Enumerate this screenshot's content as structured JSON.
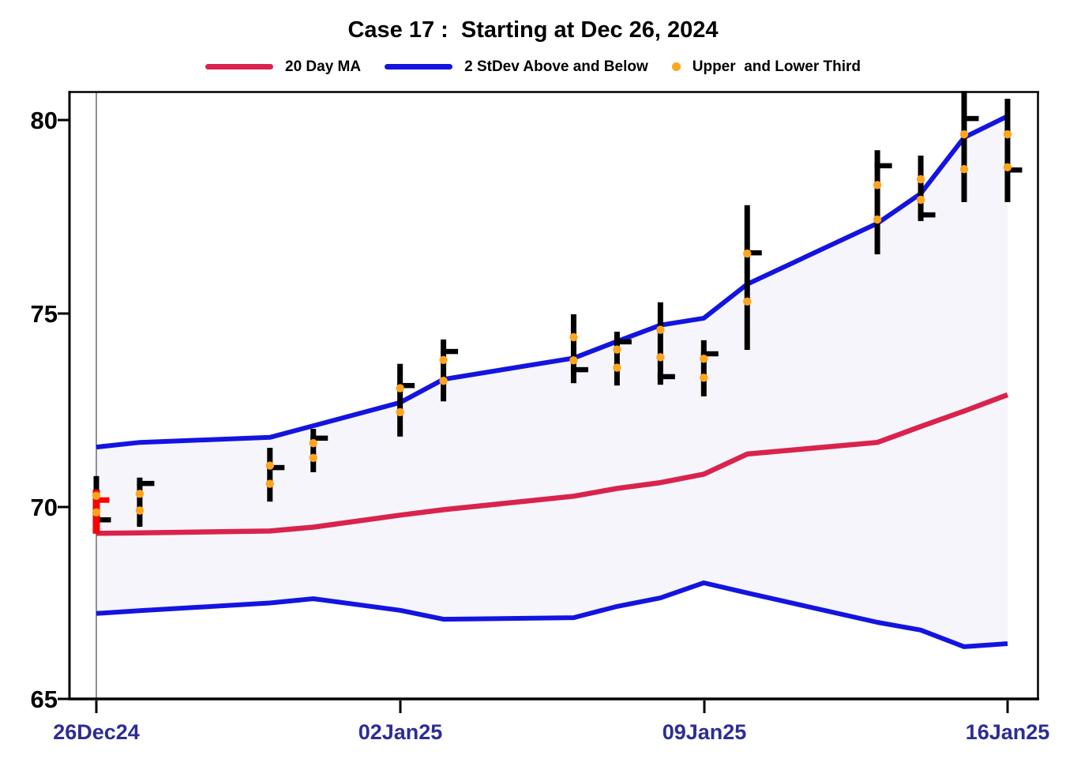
{
  "chart_data": {
    "type": "ohlc+line",
    "title": "Case 17 :  Starting at Dec 26, 2024",
    "legend": [
      {
        "label": "20 Day MA",
        "marker": "line",
        "color": "#D9234D"
      },
      {
        "label": "2 StDev Above and Below",
        "marker": "line",
        "color": "#1414E1"
      },
      {
        "label": "Upper  and Lower Third",
        "marker": "dot",
        "color": "#FFA41E"
      }
    ],
    "y_axis": {
      "ticks": [
        80,
        75,
        70,
        65
      ],
      "range": [
        65,
        80.8
      ],
      "grid": false
    },
    "x_axis": {
      "ticks": [
        {
          "label": "26Dec24",
          "day": 0
        },
        {
          "label": "02Jan25",
          "day": 7
        },
        {
          "label": "09Jan25",
          "day": 14
        },
        {
          "label": "16Jan25",
          "day": 21
        }
      ]
    },
    "start_line_day": 0,
    "bars": [
      {
        "date": "26Dec24",
        "day": 0,
        "high": 70.8,
        "low": 69.45,
        "close": 69.67,
        "dot_upper": 70.29,
        "dot_lower": 69.86
      },
      {
        "date": "27Dec24",
        "day": 1,
        "high": 70.76,
        "low": 69.49,
        "close": 70.61,
        "dot_upper": 70.34,
        "dot_lower": 69.91
      },
      {
        "date": "30Dec24",
        "day": 4,
        "high": 71.53,
        "low": 70.14,
        "close": 71.02,
        "dot_upper": 71.07,
        "dot_lower": 70.6
      },
      {
        "date": "31Dec24",
        "day": 5,
        "high": 72.02,
        "low": 70.9,
        "close": 71.78,
        "dot_upper": 71.65,
        "dot_lower": 71.27
      },
      {
        "date": "02Jan25",
        "day": 7,
        "high": 73.7,
        "low": 71.82,
        "close": 73.14,
        "dot_upper": 73.07,
        "dot_lower": 72.45
      },
      {
        "date": "03Jan25",
        "day": 8,
        "high": 74.33,
        "low": 72.73,
        "close": 74.02,
        "dot_upper": 73.8,
        "dot_lower": 73.26
      },
      {
        "date": "06Jan25",
        "day": 11,
        "high": 74.98,
        "low": 73.2,
        "close": 73.55,
        "dot_upper": 74.39,
        "dot_lower": 73.79
      },
      {
        "date": "07Jan25",
        "day": 12,
        "high": 74.53,
        "low": 73.14,
        "close": 74.27,
        "dot_upper": 74.07,
        "dot_lower": 73.6
      },
      {
        "date": "08Jan25",
        "day": 13,
        "high": 75.29,
        "low": 73.16,
        "close": 73.37,
        "dot_upper": 74.58,
        "dot_lower": 73.87
      },
      {
        "date": "09Jan25",
        "day": 14,
        "high": 74.31,
        "low": 72.86,
        "close": 73.96,
        "dot_upper": 73.83,
        "dot_lower": 73.34
      },
      {
        "date": "10Jan25",
        "day": 15,
        "high": 77.8,
        "low": 74.06,
        "close": 76.57,
        "dot_upper": 76.55,
        "dot_lower": 75.31
      },
      {
        "date": "13Jan25",
        "day": 18,
        "high": 79.22,
        "low": 76.53,
        "close": 78.82,
        "dot_upper": 78.32,
        "dot_lower": 77.43
      },
      {
        "date": "14Jan25",
        "day": 19,
        "high": 79.08,
        "low": 77.39,
        "close": 77.55,
        "dot_upper": 78.47,
        "dot_lower": 77.94
      },
      {
        "date": "15Jan25",
        "day": 20,
        "high": 80.75,
        "low": 77.88,
        "close": 80.04,
        "dot_upper": 79.63,
        "dot_lower": 78.73
      },
      {
        "date": "16Jan25",
        "day": 21,
        "high": 80.55,
        "low": 77.88,
        "close": 78.71,
        "dot_upper": 79.63,
        "dot_lower": 78.78
      }
    ],
    "start_overlay": {
      "date": "26Dec24",
      "day": 0,
      "high": 70.45,
      "low": 69.31,
      "close": 70.18
    },
    "series": [
      {
        "name": "20 Day MA",
        "color": "#D9234D",
        "points": [
          {
            "day": 0,
            "value": 69.32
          },
          {
            "day": 1,
            "value": 69.33
          },
          {
            "day": 4,
            "value": 69.38
          },
          {
            "day": 5,
            "value": 69.48
          },
          {
            "day": 7,
            "value": 69.79
          },
          {
            "day": 8,
            "value": 69.93
          },
          {
            "day": 11,
            "value": 70.28
          },
          {
            "day": 12,
            "value": 70.48
          },
          {
            "day": 13,
            "value": 70.63
          },
          {
            "day": 14,
            "value": 70.85
          },
          {
            "day": 15,
            "value": 71.37
          },
          {
            "day": 18,
            "value": 71.67
          },
          {
            "day": 19,
            "value": 72.08
          },
          {
            "day": 20,
            "value": 72.48
          },
          {
            "day": 21,
            "value": 72.9
          }
        ]
      },
      {
        "name": "Upper 2 StDev",
        "color": "#1414E1",
        "points": [
          {
            "day": 0,
            "value": 71.55
          },
          {
            "day": 1,
            "value": 71.67
          },
          {
            "day": 4,
            "value": 71.8
          },
          {
            "day": 5,
            "value": 72.1
          },
          {
            "day": 7,
            "value": 72.7
          },
          {
            "day": 8,
            "value": 73.3
          },
          {
            "day": 11,
            "value": 73.85
          },
          {
            "day": 12,
            "value": 74.28
          },
          {
            "day": 13,
            "value": 74.7
          },
          {
            "day": 14,
            "value": 74.88
          },
          {
            "day": 15,
            "value": 75.76
          },
          {
            "day": 18,
            "value": 77.33
          },
          {
            "day": 19,
            "value": 78.1
          },
          {
            "day": 20,
            "value": 79.55
          },
          {
            "day": 21,
            "value": 80.1
          }
        ]
      },
      {
        "name": "Lower 2 StDev",
        "color": "#1414E1",
        "points": [
          {
            "day": 0,
            "value": 67.25
          },
          {
            "day": 1,
            "value": 67.32
          },
          {
            "day": 4,
            "value": 67.52
          },
          {
            "day": 5,
            "value": 67.63
          },
          {
            "day": 7,
            "value": 67.33
          },
          {
            "day": 8,
            "value": 67.1
          },
          {
            "day": 11,
            "value": 67.14
          },
          {
            "day": 12,
            "value": 67.43
          },
          {
            "day": 13,
            "value": 67.65
          },
          {
            "day": 14,
            "value": 68.04
          },
          {
            "day": 15,
            "value": 67.78
          },
          {
            "day": 18,
            "value": 67.02
          },
          {
            "day": 19,
            "value": 66.82
          },
          {
            "day": 20,
            "value": 66.39
          },
          {
            "day": 21,
            "value": 66.47
          }
        ]
      }
    ],
    "colors": {
      "bar": "#000000",
      "start_bar": "#F50505",
      "ma_line": "#D9234D",
      "band_line": "#1414E1",
      "band_fill": "#F5F5FB",
      "third_dot": "#FFA41E",
      "date_label": "#2E2C96",
      "start_line": "#909090",
      "frame": "#000000"
    }
  }
}
